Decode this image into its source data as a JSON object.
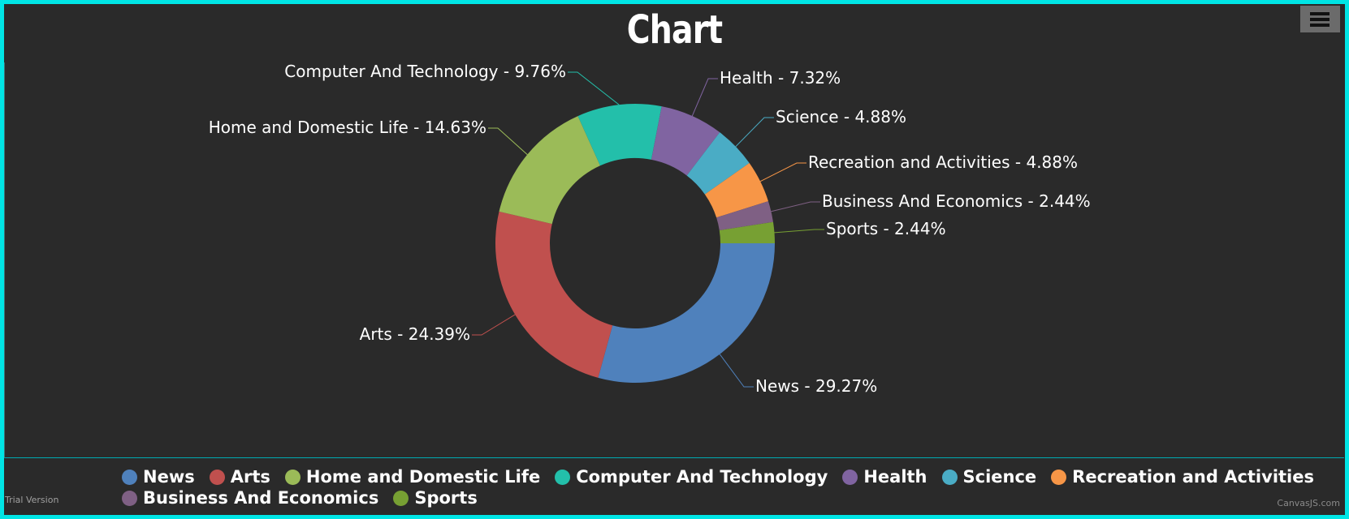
{
  "chart_data": {
    "type": "pie",
    "style": "doughnut",
    "title": "Chart",
    "legend_placement": "bottom",
    "slices": [
      {
        "name": "News",
        "value": 29.27,
        "color": "#4f81bc",
        "label": "News - 29.27%"
      },
      {
        "name": "Arts",
        "value": 24.39,
        "color": "#c0504e",
        "label": "Arts - 24.39%"
      },
      {
        "name": "Home and Domestic Life",
        "value": 14.63,
        "color": "#9bbb58",
        "label": "Home and Domestic Life - 14.63%"
      },
      {
        "name": "Computer And Technology",
        "value": 9.76,
        "color": "#23bfaa",
        "label": "Computer And Technology - 9.76%"
      },
      {
        "name": "Health",
        "value": 7.32,
        "color": "#8064a1",
        "label": "Health - 7.32%"
      },
      {
        "name": "Science",
        "value": 4.88,
        "color": "#4aacc5",
        "label": "Science - 4.88%"
      },
      {
        "name": "Recreation and Activities",
        "value": 4.88,
        "color": "#f79647",
        "label": "Recreation and Activities - 4.88%"
      },
      {
        "name": "Business And Economics",
        "value": 2.44,
        "color": "#7f6084",
        "label": "Business And Economics - 2.44%"
      },
      {
        "name": "Sports",
        "value": 2.44,
        "color": "#77a033",
        "label": "Sports - 2.44%"
      }
    ]
  },
  "footer": {
    "trial_text": "Trial Version",
    "credit_text": "CanvasJS.com"
  },
  "menu": {
    "icon": "hamburger-menu-icon"
  }
}
